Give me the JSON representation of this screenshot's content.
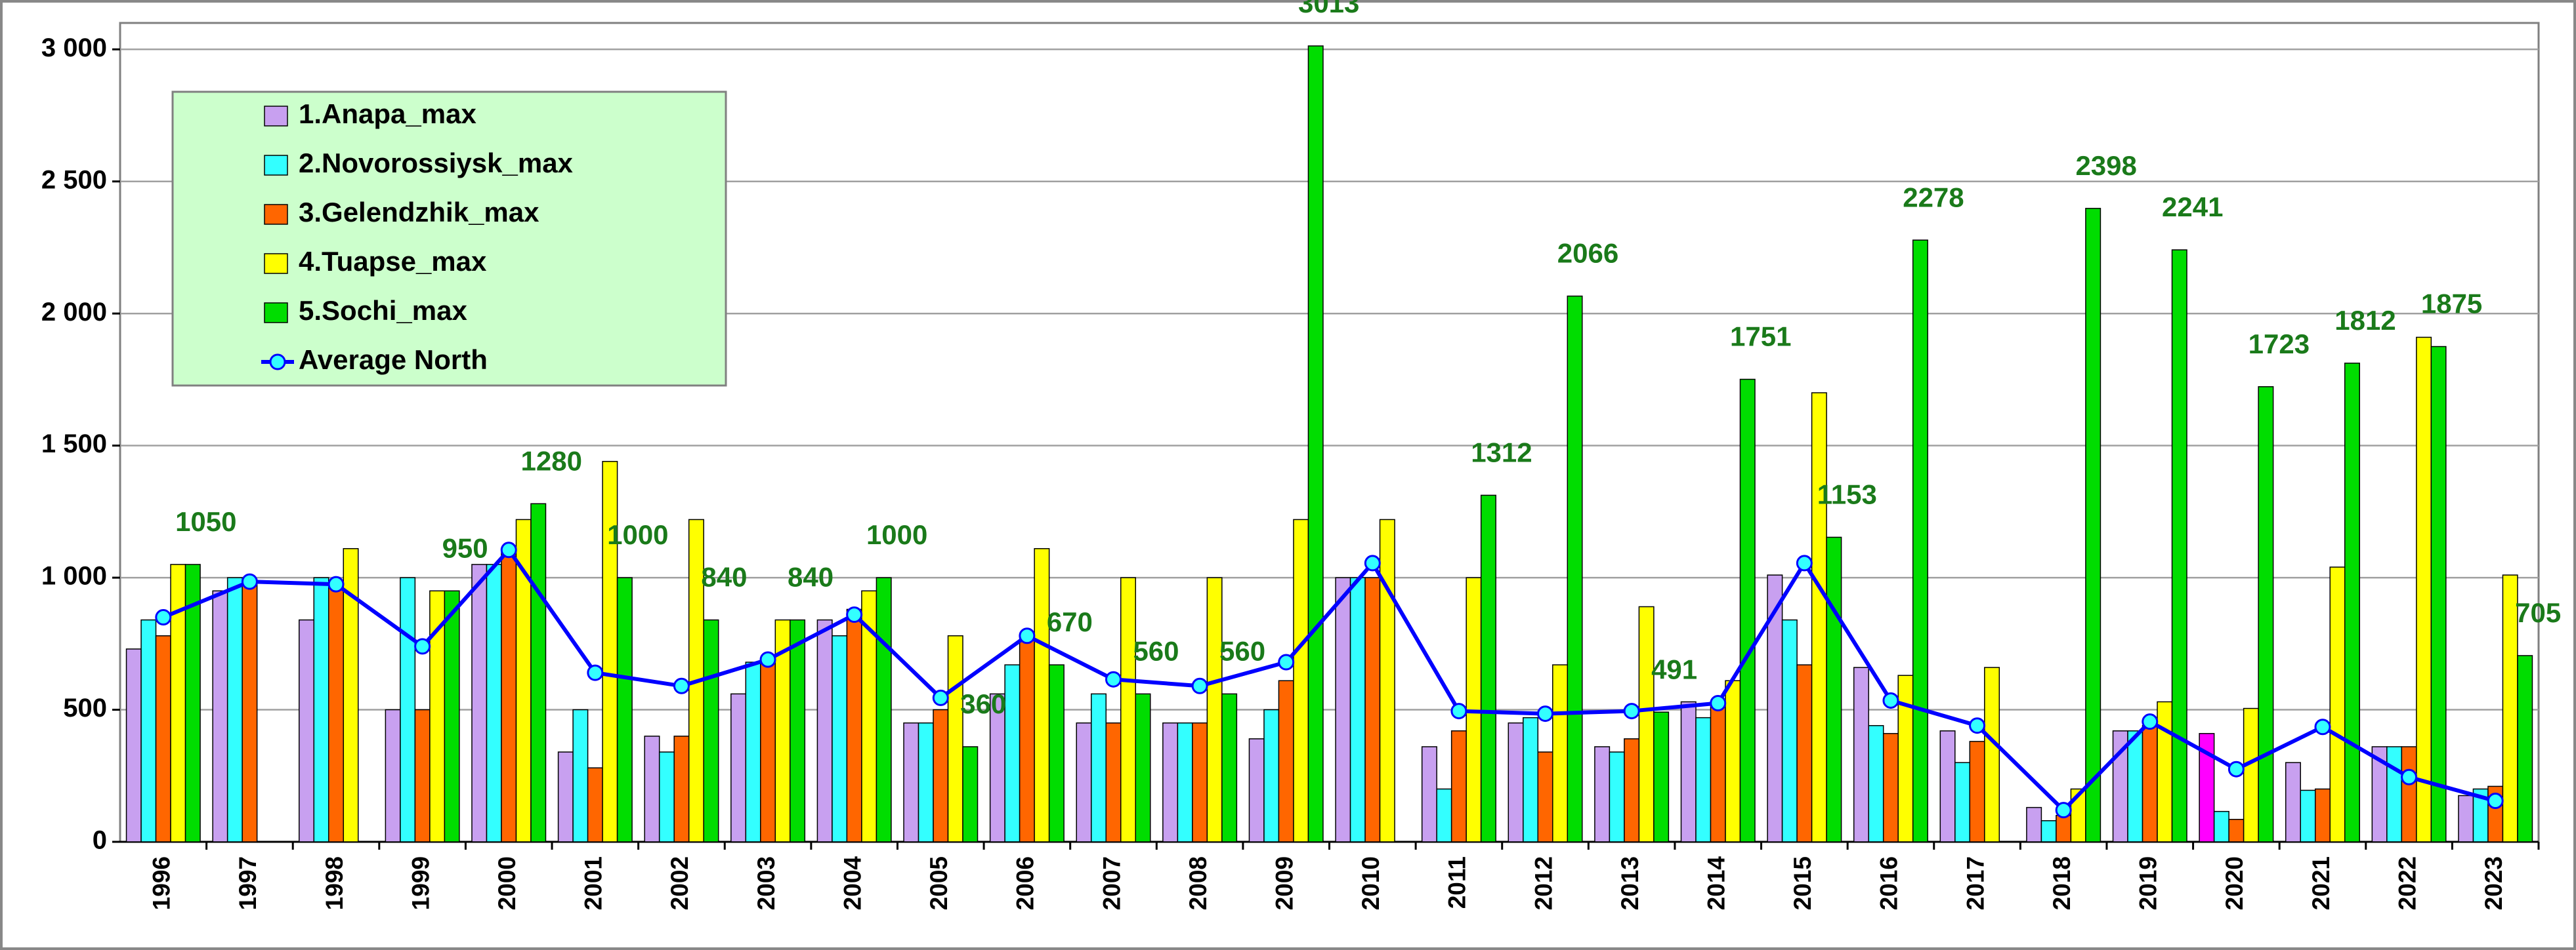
{
  "chart_data": {
    "type": "bar",
    "categories": [
      "1996",
      "1997",
      "1998",
      "1999",
      "2000",
      "2001",
      "2002",
      "2003",
      "2004",
      "2005",
      "2006",
      "2007",
      "2008",
      "2009",
      "2010",
      "2011",
      "2012",
      "2013",
      "2014",
      "2015",
      "2016",
      "2017",
      "2018",
      "2019",
      "2020",
      "2021",
      "2022",
      "2023"
    ],
    "series": [
      {
        "name": "1.Anapa_max",
        "color": "#c8a0f0",
        "highlight": {
          "index": 24,
          "color": "#ff00ff"
        },
        "values": [
          730,
          950,
          840,
          500,
          1050,
          340,
          400,
          560,
          840,
          450,
          560,
          450,
          450,
          390,
          1000,
          360,
          450,
          360,
          530,
          1010,
          660,
          420,
          130,
          420,
          410,
          300,
          360,
          175
        ]
      },
      {
        "name": "2.Novorossiysk_max",
        "color": "#33ffff",
        "values": [
          840,
          1000,
          1000,
          1000,
          1050,
          500,
          340,
          680,
          780,
          450,
          670,
          560,
          450,
          500,
          1000,
          200,
          470,
          340,
          470,
          840,
          440,
          300,
          80,
          420,
          115,
          195,
          360,
          200
        ]
      },
      {
        "name": "3.Gelendzhik_max",
        "color": "#ff6600",
        "values": [
          780,
          980,
          960,
          500,
          1100,
          280,
          400,
          680,
          880,
          500,
          780,
          450,
          450,
          610,
          1000,
          420,
          340,
          390,
          530,
          670,
          410,
          380,
          100,
          440,
          85,
          200,
          360,
          210
        ]
      },
      {
        "name": "4.Tuapse_max",
        "color": "#ffff00",
        "values": [
          1050,
          null,
          1110,
          950,
          1220,
          1440,
          1220,
          840,
          950,
          780,
          1110,
          1000,
          1000,
          1220,
          1220,
          1000,
          670,
          890,
          610,
          1700,
          630,
          660,
          200,
          530,
          505,
          1040,
          1910,
          1010
        ]
      },
      {
        "name": "5.Sochi_max",
        "color": "#00dd00",
        "label_color": "#1a7a1a",
        "values": [
          1050,
          null,
          null,
          950,
          1280,
          1000,
          840,
          840,
          1000,
          360,
          670,
          560,
          560,
          3013,
          null,
          1312,
          2066,
          491,
          1751,
          1153,
          2278,
          null,
          2398,
          2241,
          1723,
          1812,
          1875,
          705
        ]
      },
      {
        "name": "Average North",
        "type": "line",
        "color": "#0000ff",
        "marker_color": "#33ffff",
        "values": [
          850,
          985,
          975,
          740,
          1105,
          640,
          590,
          690,
          860,
          545,
          780,
          615,
          590,
          680,
          1055,
          495,
          485,
          495,
          525,
          1055,
          535,
          440,
          120,
          455,
          275,
          435,
          245,
          155
        ]
      }
    ],
    "ylim": [
      0,
      3100
    ],
    "yticks": [
      0,
      500,
      {
        "value": 1000,
        "label": "1 000"
      },
      {
        "value": 1500,
        "label": "1 500"
      },
      {
        "value": 2000,
        "label": "2 000"
      },
      {
        "value": 2500,
        "label": "2 500"
      },
      {
        "value": 3000,
        "label": "3 000"
      }
    ],
    "grid": true,
    "legend": "upper left"
  }
}
